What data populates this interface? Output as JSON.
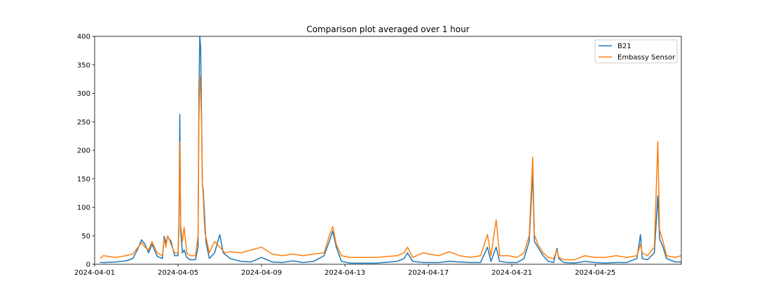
{
  "chart_data": {
    "type": "line",
    "title": "Comparison plot averaged over 1 hour",
    "xlabel": "",
    "ylabel": "",
    "x_range": [
      "2024-04-01",
      "2024-04-29T03:00"
    ],
    "ylim": [
      0,
      400
    ],
    "x_ticks": [
      "2024-04-01",
      "2024-04-05",
      "2024-04-09",
      "2024-04-13",
      "2024-04-17",
      "2024-04-21",
      "2024-04-25"
    ],
    "y_ticks": [
      0,
      50,
      100,
      150,
      200,
      250,
      300,
      350,
      400
    ],
    "grid": false,
    "legend_position": "top-right",
    "series": [
      {
        "name": "B21",
        "color": "#1f77b4",
        "points": [
          [
            "2024-04-01T06:00",
            3
          ],
          [
            "2024-04-01T12:00",
            3
          ],
          [
            "2024-04-02T00:00",
            4
          ],
          [
            "2024-04-02T12:00",
            6
          ],
          [
            "2024-04-02T20:00",
            10
          ],
          [
            "2024-04-03T02:00",
            28
          ],
          [
            "2024-04-03T06:00",
            43
          ],
          [
            "2024-04-03T10:00",
            35
          ],
          [
            "2024-04-03T14:00",
            20
          ],
          [
            "2024-04-03T18:00",
            35
          ],
          [
            "2024-04-04T00:00",
            14
          ],
          [
            "2024-04-04T06:00",
            10
          ],
          [
            "2024-04-04T08:00",
            49
          ],
          [
            "2024-04-04T10:00",
            38
          ],
          [
            "2024-04-04T12:00",
            48
          ],
          [
            "2024-04-04T16:00",
            40
          ],
          [
            "2024-04-04T20:00",
            15
          ],
          [
            "2024-04-05T00:00",
            15
          ],
          [
            "2024-04-05T01:00",
            60
          ],
          [
            "2024-04-05T02:00",
            263
          ],
          [
            "2024-04-05T03:00",
            60
          ],
          [
            "2024-04-05T05:00",
            20
          ],
          [
            "2024-04-05T07:00",
            25
          ],
          [
            "2024-04-05T10:00",
            12
          ],
          [
            "2024-04-05T14:00",
            8
          ],
          [
            "2024-04-05T20:00",
            8
          ],
          [
            "2024-04-05T23:00",
            30
          ],
          [
            "2024-04-06T00:00",
            300
          ],
          [
            "2024-04-06T01:00",
            400
          ],
          [
            "2024-04-06T02:00",
            380
          ],
          [
            "2024-04-06T04:00",
            140
          ],
          [
            "2024-04-06T05:00",
            130
          ],
          [
            "2024-04-06T06:00",
            100
          ],
          [
            "2024-04-06T08:00",
            40
          ],
          [
            "2024-04-06T12:00",
            10
          ],
          [
            "2024-04-06T18:00",
            20
          ],
          [
            "2024-04-07T00:00",
            52
          ],
          [
            "2024-04-07T04:00",
            20
          ],
          [
            "2024-04-07T12:00",
            10
          ],
          [
            "2024-04-08T00:00",
            5
          ],
          [
            "2024-04-08T12:00",
            4
          ],
          [
            "2024-04-09T00:00",
            12
          ],
          [
            "2024-04-09T12:00",
            4
          ],
          [
            "2024-04-10T00:00",
            3
          ],
          [
            "2024-04-10T12:00",
            6
          ],
          [
            "2024-04-11T00:00",
            3
          ],
          [
            "2024-04-11T12:00",
            5
          ],
          [
            "2024-04-12T00:00",
            15
          ],
          [
            "2024-04-12T06:00",
            40
          ],
          [
            "2024-04-12T10:00",
            58
          ],
          [
            "2024-04-12T14:00",
            30
          ],
          [
            "2024-04-12T20:00",
            5
          ],
          [
            "2024-04-13T06:00",
            2
          ],
          [
            "2024-04-13T18:00",
            2
          ],
          [
            "2024-04-14T12:00",
            2
          ],
          [
            "2024-04-15T12:00",
            5
          ],
          [
            "2024-04-15T20:00",
            10
          ],
          [
            "2024-04-16T00:00",
            20
          ],
          [
            "2024-04-16T06:00",
            5
          ],
          [
            "2024-04-16T18:00",
            3
          ],
          [
            "2024-04-17T12:00",
            3
          ],
          [
            "2024-04-18T00:00",
            5
          ],
          [
            "2024-04-18T12:00",
            4
          ],
          [
            "2024-04-19T00:00",
            3
          ],
          [
            "2024-04-19T12:00",
            3
          ],
          [
            "2024-04-19T20:00",
            30
          ],
          [
            "2024-04-20T00:00",
            5
          ],
          [
            "2024-04-20T06:00",
            30
          ],
          [
            "2024-04-20T10:00",
            5
          ],
          [
            "2024-04-20T20:00",
            3
          ],
          [
            "2024-04-21T06:00",
            3
          ],
          [
            "2024-04-21T14:00",
            10
          ],
          [
            "2024-04-21T20:00",
            40
          ],
          [
            "2024-04-22T00:00",
            160
          ],
          [
            "2024-04-22T02:00",
            40
          ],
          [
            "2024-04-22T06:00",
            30
          ],
          [
            "2024-04-22T12:00",
            15
          ],
          [
            "2024-04-22T18:00",
            5
          ],
          [
            "2024-04-23T00:00",
            3
          ],
          [
            "2024-04-23T04:00",
            28
          ],
          [
            "2024-04-23T06:00",
            10
          ],
          [
            "2024-04-23T12:00",
            3
          ],
          [
            "2024-04-24T00:00",
            2
          ],
          [
            "2024-04-24T12:00",
            5
          ],
          [
            "2024-04-25T00:00",
            3
          ],
          [
            "2024-04-25T12:00",
            2
          ],
          [
            "2024-04-26T00:00",
            3
          ],
          [
            "2024-04-26T12:00",
            3
          ],
          [
            "2024-04-27T00:00",
            10
          ],
          [
            "2024-04-27T04:00",
            52
          ],
          [
            "2024-04-27T06:00",
            10
          ],
          [
            "2024-04-27T12:00",
            8
          ],
          [
            "2024-04-27T20:00",
            20
          ],
          [
            "2024-04-28T00:00",
            120
          ],
          [
            "2024-04-28T02:00",
            45
          ],
          [
            "2024-04-28T06:00",
            30
          ],
          [
            "2024-04-28T10:00",
            10
          ],
          [
            "2024-04-28T20:00",
            4
          ],
          [
            "2024-04-29T03:00",
            4
          ]
        ]
      },
      {
        "name": "Embassy Sensor",
        "color": "#ff7f0e",
        "points": [
          [
            "2024-04-01T06:00",
            10
          ],
          [
            "2024-04-01T10:00",
            15
          ],
          [
            "2024-04-02T00:00",
            12
          ],
          [
            "2024-04-02T12:00",
            15
          ],
          [
            "2024-04-02T20:00",
            18
          ],
          [
            "2024-04-03T02:00",
            30
          ],
          [
            "2024-04-03T06:00",
            38
          ],
          [
            "2024-04-03T10:00",
            30
          ],
          [
            "2024-04-03T14:00",
            25
          ],
          [
            "2024-04-03T18:00",
            40
          ],
          [
            "2024-04-04T00:00",
            20
          ],
          [
            "2024-04-04T06:00",
            15
          ],
          [
            "2024-04-04T08:00",
            45
          ],
          [
            "2024-04-04T10:00",
            30
          ],
          [
            "2024-04-04T12:00",
            50
          ],
          [
            "2024-04-04T16:00",
            35
          ],
          [
            "2024-04-04T20:00",
            20
          ],
          [
            "2024-04-05T00:00",
            20
          ],
          [
            "2024-04-05T01:00",
            80
          ],
          [
            "2024-04-05T02:00",
            215
          ],
          [
            "2024-04-05T03:00",
            70
          ],
          [
            "2024-04-05T05:00",
            40
          ],
          [
            "2024-04-05T07:00",
            65
          ],
          [
            "2024-04-05T10:00",
            20
          ],
          [
            "2024-04-05T14:00",
            15
          ],
          [
            "2024-04-05T20:00",
            15
          ],
          [
            "2024-04-05T23:00",
            50
          ],
          [
            "2024-04-06T00:00",
            250
          ],
          [
            "2024-04-06T01:00",
            330
          ],
          [
            "2024-04-06T02:00",
            300
          ],
          [
            "2024-04-06T03:00",
            250
          ],
          [
            "2024-04-06T04:00",
            140
          ],
          [
            "2024-04-06T05:00",
            120
          ],
          [
            "2024-04-06T06:00",
            80
          ],
          [
            "2024-04-06T07:00",
            55
          ],
          [
            "2024-04-06T12:00",
            20
          ],
          [
            "2024-04-06T18:00",
            40
          ],
          [
            "2024-04-07T00:00",
            30
          ],
          [
            "2024-04-07T06:00",
            20
          ],
          [
            "2024-04-07T12:00",
            22
          ],
          [
            "2024-04-08T00:00",
            20
          ],
          [
            "2024-04-08T12:00",
            25
          ],
          [
            "2024-04-09T00:00",
            30
          ],
          [
            "2024-04-09T12:00",
            18
          ],
          [
            "2024-04-10T00:00",
            15
          ],
          [
            "2024-04-10T12:00",
            18
          ],
          [
            "2024-04-11T00:00",
            15
          ],
          [
            "2024-04-11T12:00",
            18
          ],
          [
            "2024-04-12T00:00",
            20
          ],
          [
            "2024-04-12T06:00",
            50
          ],
          [
            "2024-04-12T10:00",
            66
          ],
          [
            "2024-04-12T14:00",
            35
          ],
          [
            "2024-04-12T20:00",
            15
          ],
          [
            "2024-04-13T06:00",
            12
          ],
          [
            "2024-04-13T18:00",
            12
          ],
          [
            "2024-04-14T12:00",
            12
          ],
          [
            "2024-04-15T12:00",
            15
          ],
          [
            "2024-04-15T20:00",
            20
          ],
          [
            "2024-04-16T00:00",
            30
          ],
          [
            "2024-04-16T06:00",
            12
          ],
          [
            "2024-04-16T18:00",
            20
          ],
          [
            "2024-04-17T12:00",
            15
          ],
          [
            "2024-04-18T00:00",
            22
          ],
          [
            "2024-04-18T12:00",
            15
          ],
          [
            "2024-04-19T00:00",
            12
          ],
          [
            "2024-04-19T12:00",
            15
          ],
          [
            "2024-04-19T20:00",
            52
          ],
          [
            "2024-04-20T00:00",
            15
          ],
          [
            "2024-04-20T06:00",
            78
          ],
          [
            "2024-04-20T10:00",
            15
          ],
          [
            "2024-04-20T20:00",
            15
          ],
          [
            "2024-04-21T06:00",
            12
          ],
          [
            "2024-04-21T14:00",
            20
          ],
          [
            "2024-04-21T20:00",
            50
          ],
          [
            "2024-04-22T00:00",
            188
          ],
          [
            "2024-04-22T02:00",
            52
          ],
          [
            "2024-04-22T06:00",
            35
          ],
          [
            "2024-04-22T12:00",
            20
          ],
          [
            "2024-04-22T18:00",
            12
          ],
          [
            "2024-04-23T00:00",
            10
          ],
          [
            "2024-04-23T04:00",
            25
          ],
          [
            "2024-04-23T06:00",
            12
          ],
          [
            "2024-04-23T12:00",
            8
          ],
          [
            "2024-04-24T00:00",
            8
          ],
          [
            "2024-04-24T12:00",
            15
          ],
          [
            "2024-04-25T00:00",
            12
          ],
          [
            "2024-04-25T12:00",
            12
          ],
          [
            "2024-04-26T00:00",
            15
          ],
          [
            "2024-04-26T12:00",
            12
          ],
          [
            "2024-04-27T00:00",
            15
          ],
          [
            "2024-04-27T04:00",
            35
          ],
          [
            "2024-04-27T06:00",
            20
          ],
          [
            "2024-04-27T12:00",
            15
          ],
          [
            "2024-04-27T20:00",
            30
          ],
          [
            "2024-04-28T00:00",
            215
          ],
          [
            "2024-04-28T02:00",
            60
          ],
          [
            "2024-04-28T06:00",
            40
          ],
          [
            "2024-04-28T10:00",
            15
          ],
          [
            "2024-04-28T20:00",
            12
          ],
          [
            "2024-04-29T03:00",
            15
          ]
        ]
      }
    ]
  }
}
